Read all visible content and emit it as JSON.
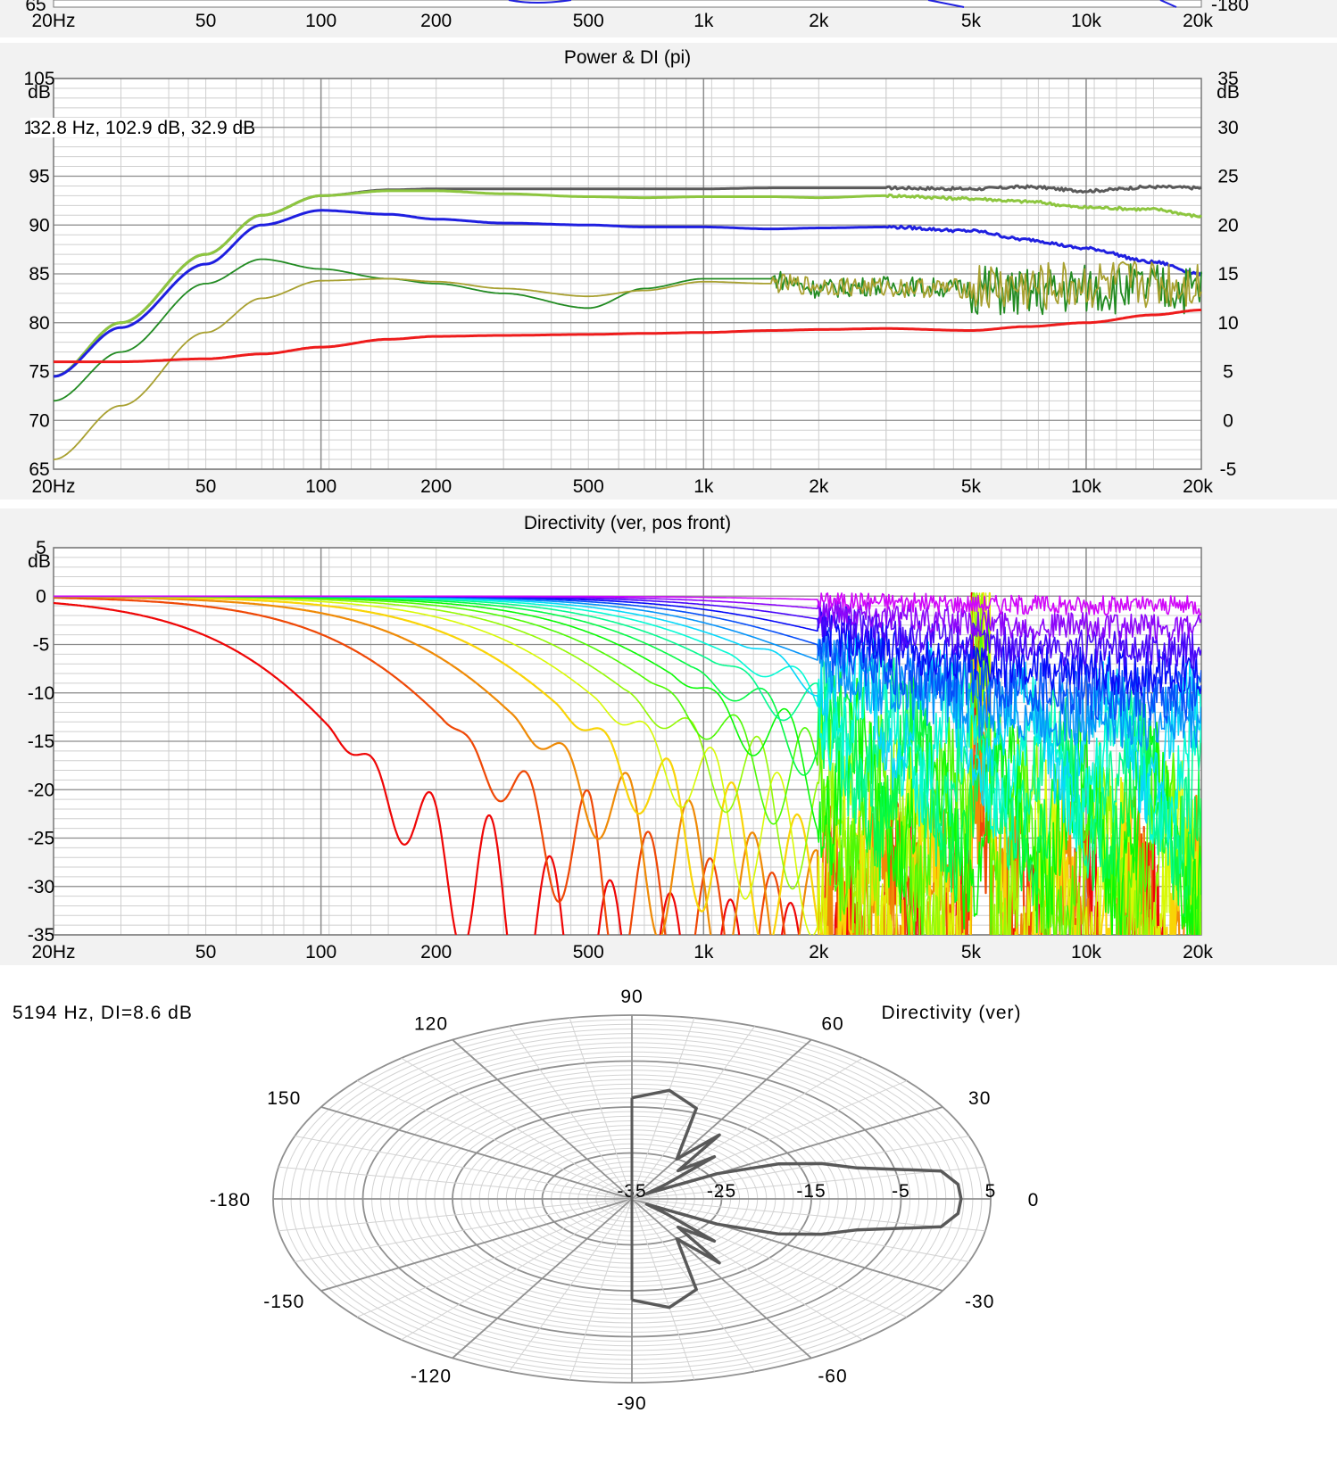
{
  "top_strip": {
    "x_ticks": [
      "20Hz",
      "50",
      "100",
      "200",
      "500",
      "1k",
      "2k",
      "5k",
      "10k",
      "20k"
    ],
    "left_partial": "65",
    "right_partial": "-180"
  },
  "colors": {
    "panel_bg": "#f2f2f2",
    "grid_major": "#8c8c8c",
    "grid_minor": "#cfcfcf",
    "sound_power": "#1f1fe0",
    "listening_window": "#8dc63f",
    "on_axis": "#5a5a5a",
    "di": "#ee1c1c",
    "early_reflections": "#228b22",
    "erdi": "#a8a030",
    "polar_curve": "#595959"
  },
  "chart_data": [
    {
      "type": "line",
      "title": "Power & DI (pi)",
      "xscale": "log",
      "xlim": [
        20,
        20000
      ],
      "ylim": [
        65,
        105
      ],
      "ylabel": "dB",
      "y2lim": [
        -5,
        35
      ],
      "y2label": "dB",
      "x_ticks": [
        "20Hz",
        "50",
        "100",
        "200",
        "500",
        "1k",
        "2k",
        "5k",
        "10k",
        "20k"
      ],
      "y_ticks": [
        "105",
        "100",
        "95",
        "90",
        "85",
        "80",
        "75",
        "70",
        "65"
      ],
      "y2_ticks": [
        "35",
        "30",
        "25",
        "20",
        "15",
        "10",
        "5",
        "0",
        "-5"
      ],
      "readout": "32.8 Hz, 102.9 dB, 32.9 dB",
      "x": [
        20,
        30,
        50,
        70,
        100,
        150,
        200,
        300,
        500,
        700,
        1000,
        1500,
        2000,
        3000,
        5000,
        7000,
        10000,
        15000,
        20000
      ],
      "series": [
        {
          "color": "#5a5a5a",
          "values": [
            74.5,
            80,
            87,
            91,
            93,
            93.6,
            93.7,
            93.7,
            93.7,
            93.7,
            93.7,
            93.8,
            93.8,
            93.8,
            93.7,
            93.9,
            93.5,
            93.9,
            93.8
          ]
        },
        {
          "color": "#8dc63f",
          "values": [
            74.5,
            80,
            87,
            91,
            93,
            93.5,
            93.5,
            93.2,
            92.9,
            92.8,
            92.9,
            92.9,
            92.8,
            93,
            92.7,
            92.4,
            91.8,
            91.6,
            90.9
          ]
        },
        {
          "color": "#1f1fe0",
          "values": [
            74.5,
            79.5,
            86,
            90,
            91.5,
            91.1,
            90.6,
            90.2,
            90,
            89.8,
            89.8,
            89.6,
            89.7,
            89.8,
            89.4,
            88.5,
            87.6,
            86.2,
            85
          ]
        },
        {
          "color": "#228b22",
          "values": [
            72,
            77,
            84,
            86.5,
            85.5,
            84.5,
            84,
            83,
            81.5,
            83.5,
            84.5,
            84.5,
            83.5,
            83.8,
            83.5,
            83,
            83.5,
            83.5,
            83.5
          ]
        },
        {
          "color": "#a8a030",
          "values": [
            66,
            71.5,
            79,
            82.5,
            84.3,
            84.5,
            84.2,
            83.5,
            82.7,
            83.3,
            84.2,
            84,
            83.8,
            83.6,
            83.5,
            83.5,
            83.8,
            84,
            84
          ]
        },
        {
          "color": "#ee1c1c",
          "values": [
            76,
            76,
            76.3,
            76.8,
            77.5,
            78.3,
            78.6,
            78.7,
            78.8,
            78.9,
            79,
            79.2,
            79.3,
            79.4,
            79.2,
            79.6,
            80,
            80.8,
            81.3
          ]
        }
      ]
    },
    {
      "type": "line",
      "title": "Directivity (ver, pos front)",
      "xscale": "log",
      "xlim": [
        20,
        20000
      ],
      "ylim": [
        -35,
        5
      ],
      "ylabel": "dB",
      "x_ticks": [
        "20Hz",
        "50",
        "100",
        "200",
        "500",
        "1k",
        "2k",
        "5k",
        "10k",
        "20k"
      ],
      "y_ticks": [
        "5",
        "0",
        "-5",
        "-10",
        "-15",
        "-20",
        "-25",
        "-30",
        "-35"
      ],
      "curve_count": 18
    },
    {
      "type": "polar",
      "title": "Directivity (ver)",
      "readout": "5194 Hz, DI=8.6 dB",
      "angle_labels": [
        "0",
        "30",
        "60",
        "90",
        "120",
        "150",
        "-180",
        "-150",
        "-120",
        "-90",
        "-60",
        "-30"
      ],
      "radial_ticks": [
        "-35",
        "-25",
        "-15",
        "-5",
        "5"
      ],
      "rlim": [
        -35,
        5
      ],
      "angles": [
        -90,
        -80,
        -70,
        -60,
        -55,
        -50,
        -45,
        -40,
        -35,
        -30,
        -25,
        -20,
        -15,
        -10,
        -5,
        0,
        5,
        10,
        15,
        20,
        25,
        30,
        35,
        40,
        45,
        50,
        55,
        60,
        70,
        80,
        90
      ],
      "levels": [
        -13,
        -11,
        -14,
        -25,
        -18,
        -27,
        -22,
        -30,
        -33,
        -24,
        -17,
        -12.5,
        -9,
        0,
        1.5,
        1.7,
        1.5,
        0,
        -9,
        -12.5,
        -17,
        -24,
        -33,
        -30,
        -22,
        -27,
        -18,
        -25,
        -14,
        -11,
        -13
      ]
    }
  ]
}
